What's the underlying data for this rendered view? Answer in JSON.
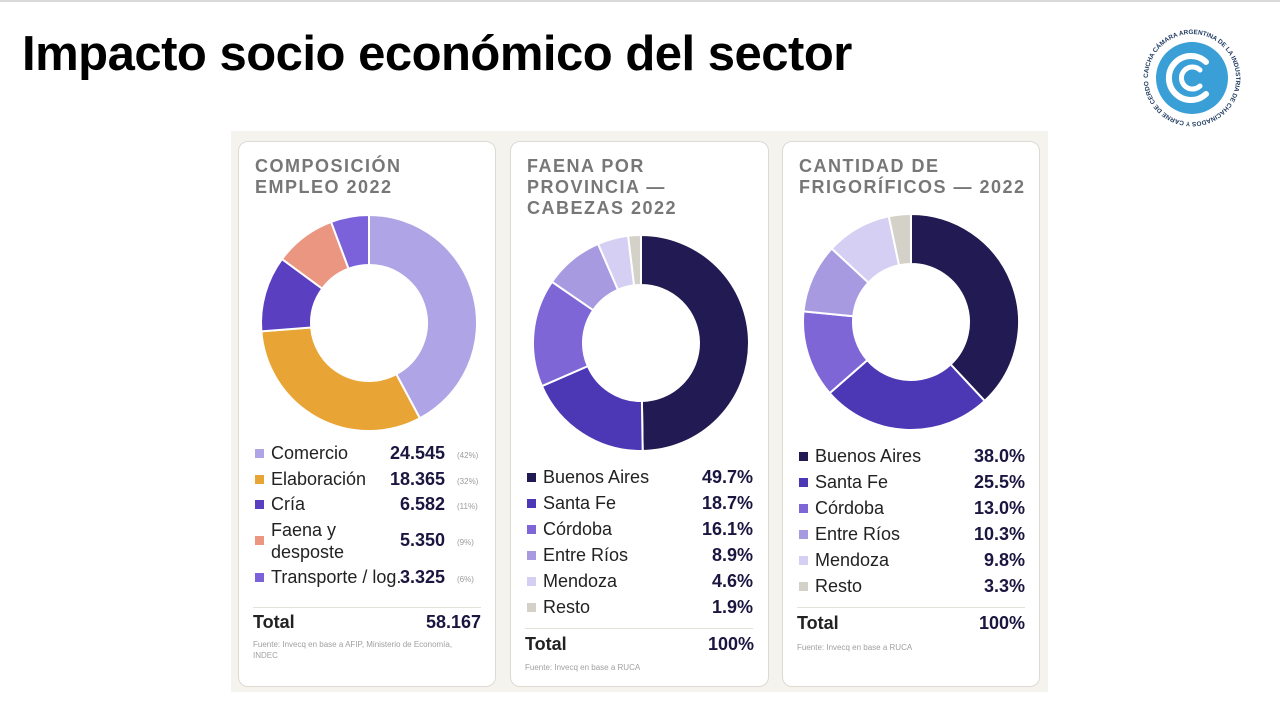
{
  "slide_title": "Impacto socio económico del sector",
  "logo": {
    "acronym": "CAICHA",
    "ring_text": "CÁMARA ARGENTINA DE LA INDUSTRIA DE CHACINADOS Y CARNE DE CERDO",
    "color": "#3a9fd6"
  },
  "chart_data": [
    {
      "type": "pie",
      "title": "COMPOSICIÓN\nEMPLEO 2022",
      "categories": [
        "Comercio",
        "Elaboración",
        "Cría",
        "Faena y desposte",
        "Transporte / log."
      ],
      "values": [
        24545,
        18365,
        6582,
        5350,
        3325
      ],
      "value_labels": [
        "24.545",
        "18.365",
        "6.582",
        "5.350",
        "3.325"
      ],
      "percent_labels": [
        "(42%)",
        "(32%)",
        "(11%)",
        "(9%)",
        "(6%)"
      ],
      "colors": [
        "#afa4e6",
        "#e8a435",
        "#5a3fc0",
        "#ea9680",
        "#7b62db"
      ],
      "total_label": "Total",
      "total_value": "58.167",
      "source": "Fuente: Invecq en base a AFIP, Ministerio de Economía, INDEC"
    },
    {
      "type": "pie",
      "title": "FAENA POR\nPROVINCIA —\nCABEZAS 2022",
      "categories": [
        "Buenos Aires",
        "Santa Fe",
        "Córdoba",
        "Entre Ríos",
        "Mendoza",
        "Resto"
      ],
      "values": [
        49.7,
        18.7,
        16.1,
        8.9,
        4.6,
        1.9
      ],
      "value_labels": [
        "49.7%",
        "18.7%",
        "16.1%",
        "8.9%",
        "4.6%",
        "1.9%"
      ],
      "colors": [
        "#221a52",
        "#4c38b4",
        "#7f66d6",
        "#a79ae0",
        "#d4cff3",
        "#d3d1c8"
      ],
      "total_label": "Total",
      "total_value": "100%",
      "source": "Fuente: Invecq en base a RUCA"
    },
    {
      "type": "pie",
      "title": "CANTIDAD DE\nFRIGORÍFICOS — 2022",
      "categories": [
        "Buenos Aires",
        "Santa Fe",
        "Córdoba",
        "Entre Ríos",
        "Mendoza",
        "Resto"
      ],
      "values": [
        38.0,
        25.5,
        13.0,
        10.3,
        9.8,
        3.3
      ],
      "value_labels": [
        "38.0%",
        "25.5%",
        "13.0%",
        "10.3%",
        "9.8%",
        "3.3%"
      ],
      "colors": [
        "#221a52",
        "#4c38b4",
        "#7f66d6",
        "#a79ae0",
        "#d4cff3",
        "#d3d1c8"
      ],
      "total_label": "Total",
      "total_value": "100%",
      "source": "Fuente: Invecq en base a RUCA"
    }
  ]
}
